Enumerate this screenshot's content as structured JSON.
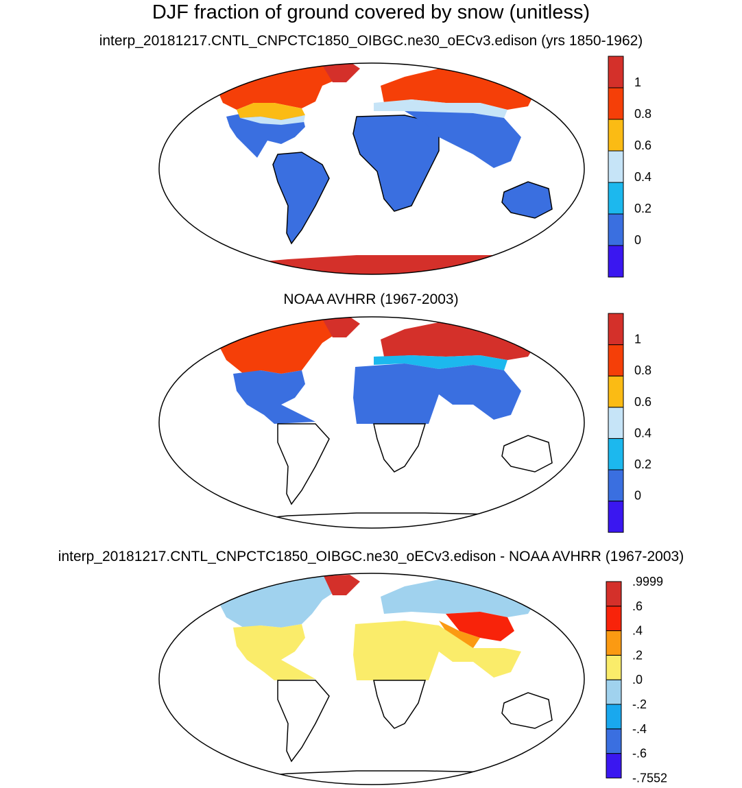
{
  "title": "DJF fraction of ground covered by snow (unitless)",
  "panels": [
    {
      "id": "model",
      "subtitle": "interp_20181217.CNTL_CNPCTC1850_OIBGC.ne30_oECv3.edison (yrs 1850-1962)",
      "colorbar": {
        "colors": [
          "#3a17f0",
          "#3a6fe0",
          "#1cb8ee",
          "#c6e4f7",
          "#fbbb14",
          "#f53f08",
          "#d4302a"
        ],
        "labels": [
          "0",
          "0.2",
          "0.4",
          "0.6",
          "0.8",
          "1"
        ]
      }
    },
    {
      "id": "obs",
      "subtitle": "NOAA AVHRR (1967-2003)",
      "colorbar": {
        "colors": [
          "#3a17f0",
          "#3a6fe0",
          "#1cb8ee",
          "#c6e4f7",
          "#fbbb14",
          "#f53f08",
          "#d4302a"
        ],
        "labels": [
          "0",
          "0.2",
          "0.4",
          "0.6",
          "0.8",
          "1"
        ]
      }
    },
    {
      "id": "diff",
      "subtitle": "interp_20181217.CNTL_CNPCTC1850_OIBGC.ne30_oECv3.edison - NOAA AVHRR (1967-2003)",
      "colorbar": {
        "colors": [
          "#3a17f0",
          "#3a6fe0",
          "#19a8ee",
          "#a0d2ee",
          "#faec6a",
          "#fb9a12",
          "#f8230a",
          "#d4302a"
        ],
        "labels": [
          ".9999",
          ".6",
          ".4",
          ".2",
          ".0",
          "-.2",
          "-.4",
          "-.6",
          "-.7552"
        ]
      }
    }
  ]
}
